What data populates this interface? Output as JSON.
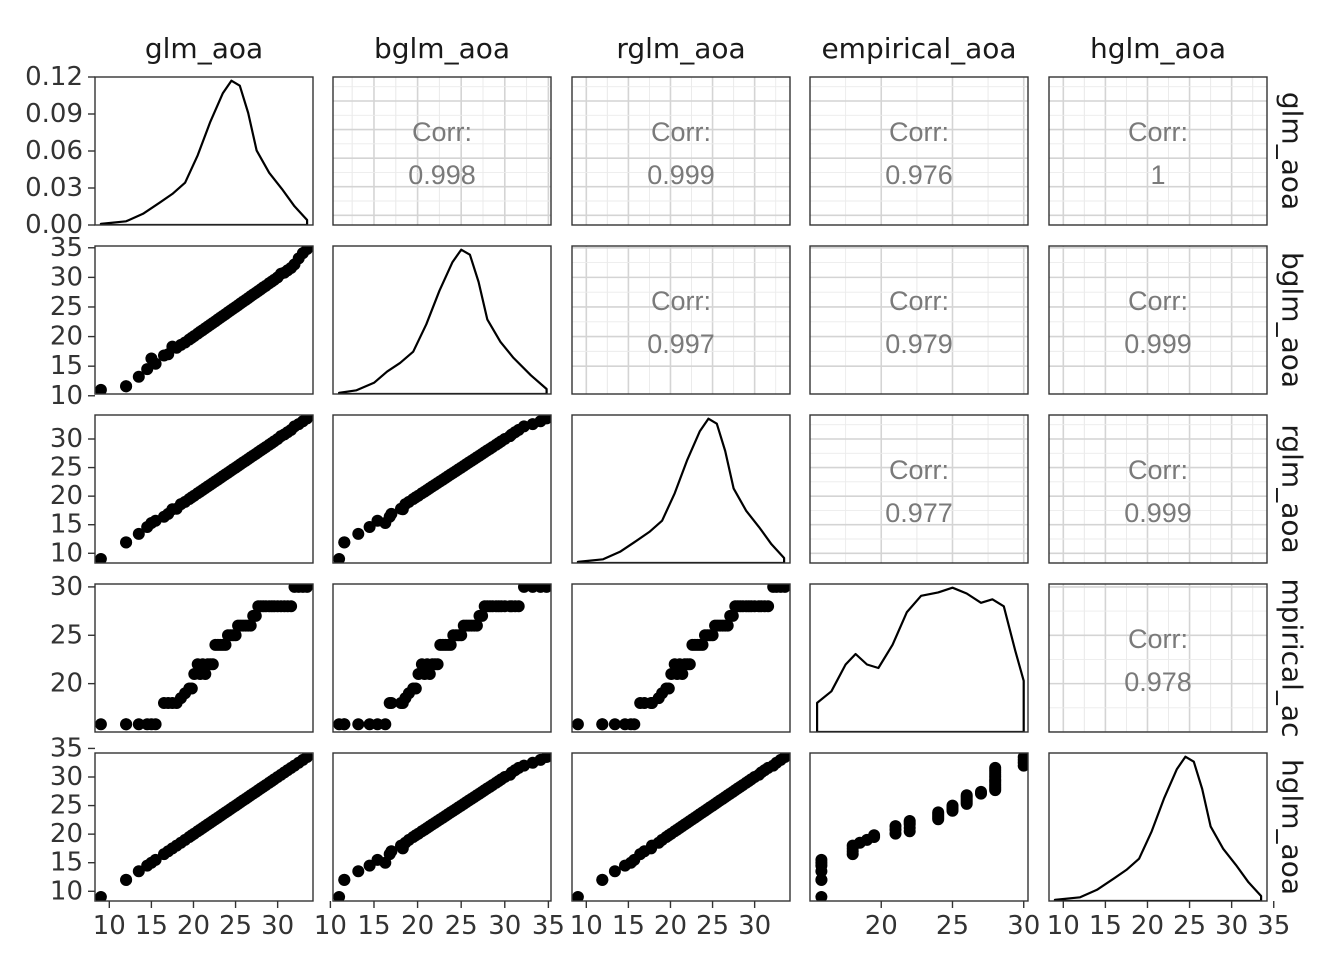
{
  "chart_data": {
    "type": "scatter-matrix",
    "variables": [
      "glm_aoa",
      "bglm_aoa",
      "rglm_aoa",
      "empirical_aoa",
      "hglm_aoa"
    ],
    "column_labels": [
      "glm_aoa",
      "bglm_aoa",
      "rglm_aoa",
      "empirical_aoa",
      "hglm_aoa"
    ],
    "row_labels": [
      "glm_aoa",
      "bglm_aoa",
      "rglm_aoa",
      "mpirical_ac",
      "hglm_aoa"
    ],
    "corr_label": "Corr:",
    "correlations": [
      {
        "row": 0,
        "col": 1,
        "value": "0.998"
      },
      {
        "row": 0,
        "col": 2,
        "value": "0.999"
      },
      {
        "row": 0,
        "col": 3,
        "value": "0.976"
      },
      {
        "row": 0,
        "col": 4,
        "value": "1"
      },
      {
        "row": 1,
        "col": 2,
        "value": "0.997"
      },
      {
        "row": 1,
        "col": 3,
        "value": "0.979"
      },
      {
        "row": 1,
        "col": 4,
        "value": "0.999"
      },
      {
        "row": 2,
        "col": 3,
        "value": "0.977"
      },
      {
        "row": 2,
        "col": 4,
        "value": "0.999"
      },
      {
        "row": 3,
        "col": 4,
        "value": "0.978"
      }
    ],
    "ranges": [
      [
        8.3,
        34.2
      ],
      [
        10.3,
        35.3
      ],
      [
        8.3,
        34.2
      ],
      [
        15.0,
        30.3
      ],
      [
        8.3,
        34.2
      ]
    ],
    "x_ticks": [
      [
        10,
        15,
        20,
        25,
        30
      ],
      [
        10,
        15,
        20,
        25,
        30,
        35
      ],
      [
        10,
        15,
        20,
        25,
        30
      ],
      [
        20,
        25,
        30
      ],
      [
        10,
        15,
        20,
        25,
        30,
        35
      ]
    ],
    "y_ticks": [
      [
        10,
        15,
        20,
        25,
        30,
        35
      ],
      [
        10,
        15,
        20,
        25,
        30
      ],
      [
        20,
        25,
        30
      ],
      [
        10,
        15,
        20,
        25,
        30,
        35
      ]
    ],
    "density_ylim": [
      0,
      0.12
    ],
    "density_y_ticks": [
      "0.00",
      "0.03",
      "0.06",
      "0.09",
      "0.12"
    ],
    "density_peak": 0.117,
    "density": {
      "glm_aoa": {
        "x": [
          9,
          12,
          14,
          16,
          17.5,
          19,
          20.5,
          22,
          23.5,
          24.5,
          25.5,
          26.5,
          27.5,
          29,
          30.5,
          32,
          33.5
        ],
        "y": [
          0.001,
          0.003,
          0.009,
          0.018,
          0.025,
          0.034,
          0.056,
          0.083,
          0.106,
          0.116,
          0.112,
          0.09,
          0.06,
          0.042,
          0.029,
          0.015,
          0.004
        ]
      },
      "bglm_aoa": {
        "x": [
          11,
          13,
          15,
          16.5,
          18,
          19.5,
          21,
          22.5,
          24,
          25,
          26,
          27,
          28,
          29.5,
          31,
          33,
          34.8
        ],
        "y": [
          0.001,
          0.003,
          0.009,
          0.018,
          0.025,
          0.034,
          0.056,
          0.083,
          0.106,
          0.116,
          0.112,
          0.09,
          0.06,
          0.042,
          0.029,
          0.015,
          0.004
        ]
      },
      "rglm_aoa": {
        "x": [
          9,
          12,
          14,
          16,
          17.5,
          19,
          20.5,
          22,
          23.5,
          24.5,
          25.5,
          26.5,
          27.5,
          29,
          30.5,
          32,
          33.5
        ],
        "y": [
          0.001,
          0.003,
          0.009,
          0.018,
          0.025,
          0.034,
          0.056,
          0.083,
          0.106,
          0.116,
          0.112,
          0.09,
          0.06,
          0.042,
          0.029,
          0.015,
          0.004
        ]
      },
      "empirical_aoa": {
        "x": [
          15.5,
          16.5,
          17.5,
          18.2,
          19,
          19.8,
          20.8,
          21.8,
          22.8,
          24,
          25,
          26,
          27,
          27.8,
          28.6,
          29.4,
          30
        ],
        "y": [
          0.025,
          0.035,
          0.058,
          0.067,
          0.058,
          0.055,
          0.075,
          0.103,
          0.117,
          0.12,
          0.124,
          0.119,
          0.111,
          0.114,
          0.108,
          0.07,
          0.044
        ]
      },
      "hglm_aoa": {
        "x": [
          9,
          12,
          14,
          16,
          17.5,
          19,
          20.5,
          22,
          23.5,
          24.5,
          25.5,
          26.5,
          27.5,
          29,
          30.5,
          32,
          33.5
        ],
        "y": [
          0.001,
          0.003,
          0.009,
          0.018,
          0.025,
          0.034,
          0.056,
          0.083,
          0.106,
          0.116,
          0.112,
          0.09,
          0.06,
          0.042,
          0.029,
          0.015,
          0.004
        ]
      }
    },
    "samples": {
      "glm_aoa": [
        9,
        12,
        12,
        13.5,
        14.5,
        15,
        15.5,
        16.5,
        17,
        17.5,
        18,
        18.5,
        19,
        19.5,
        19.8,
        20.1,
        20.5,
        20.8,
        21.1,
        21.4,
        21.7,
        22,
        22.3,
        22.6,
        22.9,
        23.2,
        23.5,
        23.8,
        24.1,
        24.4,
        24.7,
        25,
        25.3,
        25.6,
        25.9,
        26.2,
        26.5,
        26.8,
        27.1,
        27.4,
        27.7,
        28,
        28.3,
        28.6,
        29,
        29.3,
        29.6,
        30,
        30.4,
        30.8,
        31.2,
        31.6,
        32,
        32.5,
        33,
        33.5
      ],
      "bglm_aoa": [
        11,
        11.6,
        11.6,
        13.2,
        14.5,
        16.3,
        15.4,
        16.8,
        17,
        18.3,
        18.1,
        18.6,
        19,
        19.5,
        19.8,
        20.1,
        20.5,
        20.8,
        21.1,
        21.4,
        21.7,
        22,
        22.3,
        22.6,
        22.9,
        23.2,
        23.5,
        23.8,
        24.1,
        24.4,
        24.7,
        25,
        25.3,
        25.6,
        25.9,
        26.2,
        26.5,
        26.8,
        27.1,
        27.4,
        27.7,
        28,
        28.3,
        28.6,
        29,
        29.3,
        29.6,
        30,
        30.6,
        30.8,
        31.2,
        31.6,
        32.2,
        33.2,
        34.1,
        34.8
      ],
      "rglm_aoa": [
        9,
        11.9,
        11.9,
        13.4,
        14.6,
        15.3,
        15.7,
        16.4,
        16.9,
        17.7,
        17.8,
        18.6,
        19,
        19.5,
        19.8,
        20.1,
        20.5,
        20.8,
        21.1,
        21.4,
        21.7,
        22,
        22.3,
        22.6,
        22.9,
        23.2,
        23.5,
        23.8,
        24.1,
        24.4,
        24.7,
        25,
        25.3,
        25.6,
        25.9,
        26.2,
        26.5,
        26.8,
        27.1,
        27.4,
        27.7,
        28,
        28.3,
        28.6,
        29,
        29.3,
        29.6,
        30,
        30.5,
        30.8,
        31.2,
        31.6,
        32.2,
        32.6,
        33.1,
        33.6
      ],
      "empirical_aoa": [
        15.8,
        15.8,
        15.8,
        15.8,
        15.8,
        15.8,
        15.8,
        18,
        18,
        18,
        18,
        18.5,
        19,
        19.5,
        19.5,
        21,
        22,
        21,
        22,
        21,
        22,
        22,
        22,
        24,
        24,
        24,
        24,
        24,
        25,
        25,
        25,
        25,
        26,
        26,
        26,
        26,
        26,
        26,
        27,
        27,
        28,
        28,
        28,
        28,
        28,
        28,
        28,
        28,
        28,
        28,
        28,
        28,
        30,
        30,
        30,
        30
      ],
      "hglm_aoa": [
        9,
        12,
        12,
        13.5,
        14.5,
        15,
        15.5,
        16.5,
        17,
        17.5,
        18,
        18.5,
        19,
        19.5,
        19.8,
        20.1,
        20.5,
        20.8,
        21.1,
        21.4,
        21.7,
        22,
        22.3,
        22.6,
        22.9,
        23.2,
        23.5,
        23.8,
        24.1,
        24.4,
        24.7,
        25,
        25.3,
        25.6,
        25.9,
        26.2,
        26.5,
        26.8,
        27.1,
        27.4,
        27.7,
        28,
        28.3,
        28.6,
        29,
        29.3,
        29.6,
        30,
        30.4,
        30.8,
        31.2,
        31.6,
        32,
        32.5,
        33,
        33.5
      ]
    }
  }
}
